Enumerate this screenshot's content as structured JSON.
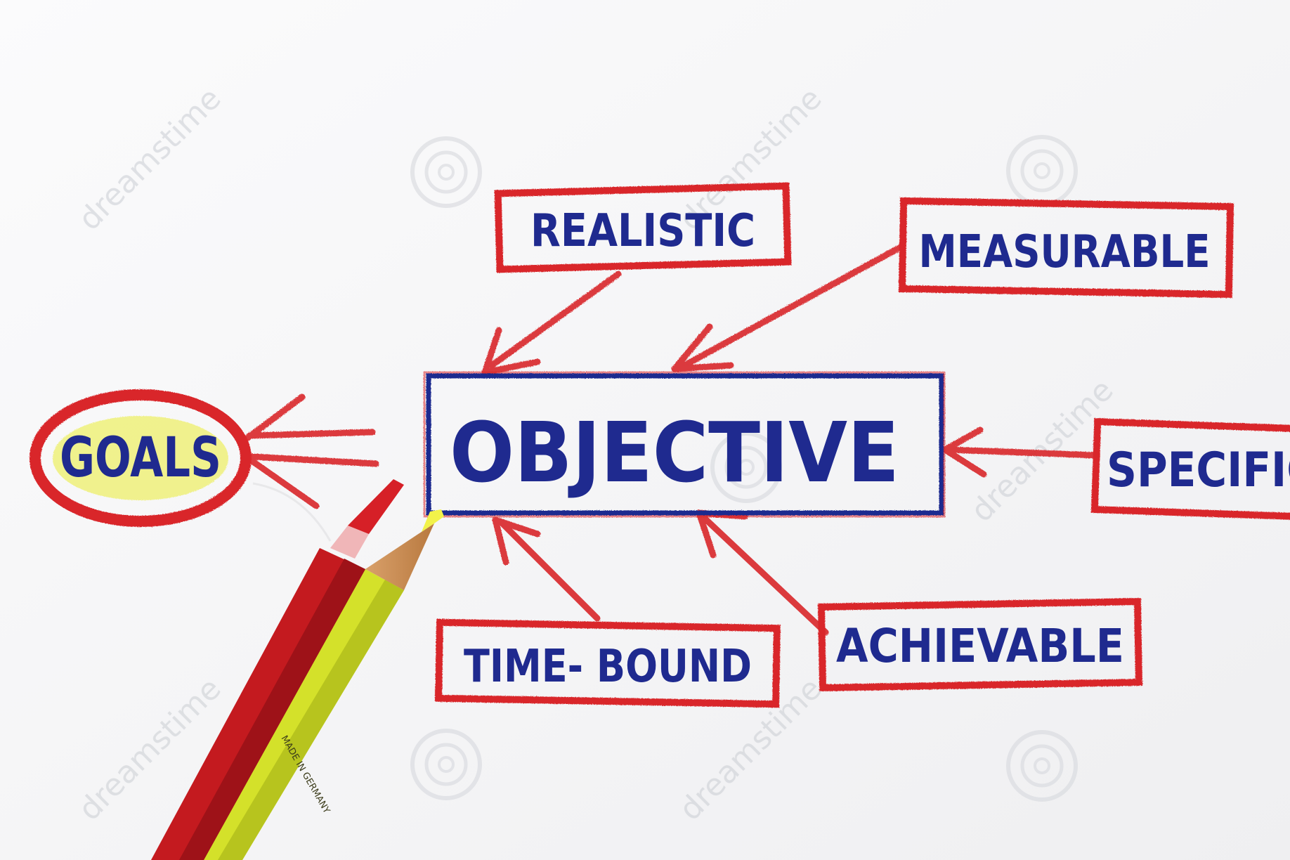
{
  "diagram": {
    "center": "OBJECTIVE",
    "target": "GOALS",
    "criteria": {
      "realistic": "REALISTIC",
      "measurable": "MEASURABLE",
      "specific": "SPECIFIC",
      "achievable": "ACHIEVABLE",
      "time_bound": "TIME- BOUND"
    }
  },
  "watermark": "dreamstime",
  "pencil_imprint": "MADE IN GERMANY",
  "colors": {
    "ink_blue": "#1f2a8f",
    "crayon_red": "#d9252c",
    "highlight_yellow": "#eef06a",
    "pencil_red": "#c41a1f",
    "pencil_yellow": "#d4e12a",
    "paper": "#f7f7f8"
  }
}
